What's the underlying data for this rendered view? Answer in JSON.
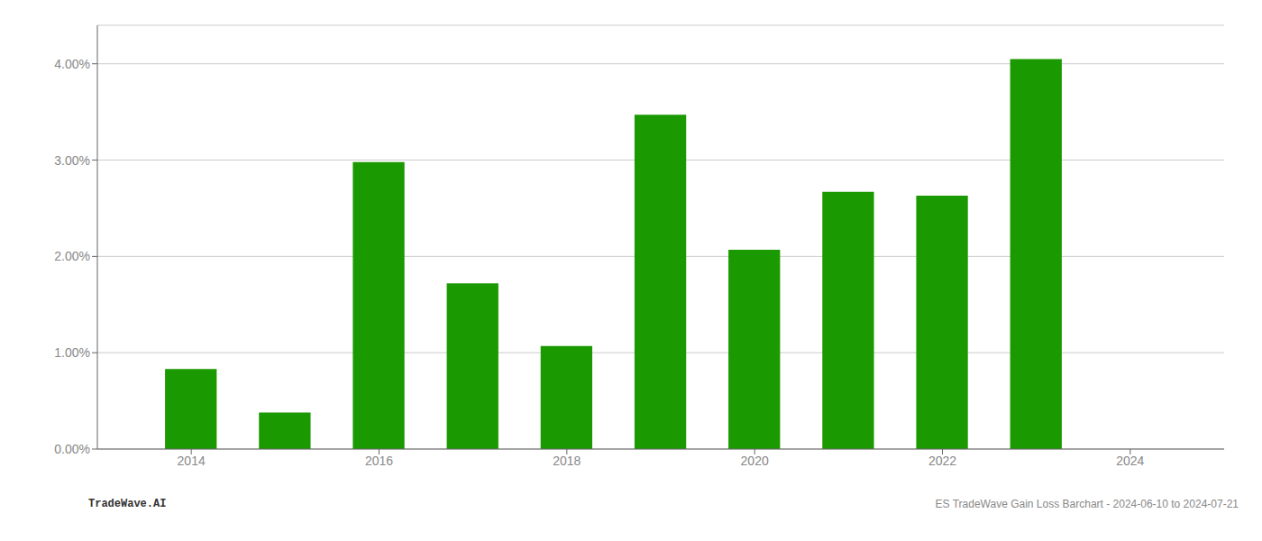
{
  "chart_data": {
    "type": "bar",
    "x": [
      2014,
      2015,
      2016,
      2017,
      2018,
      2019,
      2020,
      2021,
      2022,
      2023
    ],
    "values": [
      0.0083,
      0.0038,
      0.0298,
      0.0172,
      0.0107,
      0.0347,
      0.0207,
      0.0267,
      0.0263,
      0.0405
    ],
    "color": "#1a9900",
    "xlim": [
      2013,
      2025
    ],
    "xticks": [
      2014,
      2016,
      2018,
      2020,
      2022,
      2024
    ],
    "ylim": [
      0,
      0.044
    ],
    "yticks": [
      {
        "value": 0.0,
        "label": "0.00%"
      },
      {
        "value": 0.01,
        "label": "1.00%"
      },
      {
        "value": 0.02,
        "label": "2.00%"
      },
      {
        "value": 0.03,
        "label": "3.00%"
      },
      {
        "value": 0.04,
        "label": "4.00%"
      }
    ],
    "grid": true,
    "annotations": [
      "TradeWave.AI",
      "ES TradeWave Gain Loss Barchart - 2024-06-10 to 2024-07-21"
    ]
  }
}
